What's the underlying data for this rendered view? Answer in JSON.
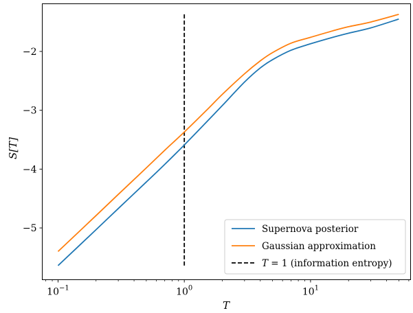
{
  "chart_data": {
    "type": "line",
    "xlabel": "T",
    "ylabel": "S[T]",
    "xscale": "log",
    "xlim": [
      0.075,
      62
    ],
    "ylim": [
      -5.88,
      -1.19
    ],
    "x_ticks": [
      {
        "value": 0.1,
        "base": "10",
        "exp": "−1"
      },
      {
        "value": 1,
        "base": "10",
        "exp": "0"
      },
      {
        "value": 10,
        "base": "10",
        "exp": "1"
      }
    ],
    "y_ticks": [
      {
        "value": -5,
        "label": "−5"
      },
      {
        "value": -4,
        "label": "−4"
      },
      {
        "value": -3,
        "label": "−3"
      },
      {
        "value": -2,
        "label": "−2"
      }
    ],
    "grid": false,
    "legend_position": "lower-right",
    "series": [
      {
        "name": "Supernova posterior",
        "color": "#1f77b4",
        "style": "solid",
        "x": [
          0.1,
          0.2,
          0.3,
          0.5,
          0.7,
          1.0,
          1.5,
          2.0,
          3.0,
          4.0,
          5.0,
          7.0,
          10.0,
          15.0,
          20.0,
          30.0,
          50.0
        ],
        "y": [
          -5.64,
          -5.03,
          -4.67,
          -4.22,
          -3.92,
          -3.59,
          -3.2,
          -2.92,
          -2.52,
          -2.28,
          -2.14,
          -1.98,
          -1.87,
          -1.76,
          -1.69,
          -1.6,
          -1.45
        ]
      },
      {
        "name": "Gaussian approximation",
        "color": "#ff7f0e",
        "style": "solid",
        "x": [
          0.1,
          0.2,
          0.3,
          0.5,
          0.7,
          1.0,
          1.5,
          2.0,
          3.0,
          4.0,
          5.0,
          7.0,
          10.0,
          15.0,
          20.0,
          30.0,
          50.0
        ],
        "y": [
          -5.4,
          -4.79,
          -4.43,
          -3.98,
          -3.68,
          -3.37,
          -3.0,
          -2.73,
          -2.38,
          -2.16,
          -2.02,
          -1.86,
          -1.76,
          -1.65,
          -1.58,
          -1.5,
          -1.37
        ]
      }
    ],
    "vline": {
      "x": 1,
      "y_range": [
        -5.64,
        -1.37
      ],
      "color": "#000000",
      "style": "dashed",
      "name_prefix": "T",
      "name_suffix": " = 1 (information entropy)"
    }
  }
}
